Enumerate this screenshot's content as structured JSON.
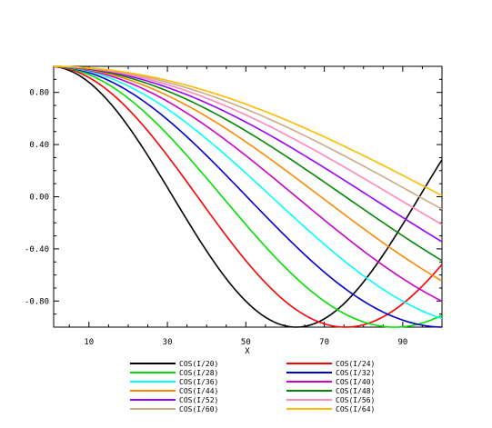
{
  "chart_data": {
    "type": "line",
    "title": "",
    "xlabel": "X",
    "ylabel": "",
    "xlim": [
      1,
      100
    ],
    "ylim": [
      -1.0,
      1.0
    ],
    "x_ticks": [
      10,
      30,
      50,
      70,
      90
    ],
    "x_tick_labels": [
      "10",
      "30",
      "50",
      "70",
      "90"
    ],
    "y_ticks": [
      0.8,
      0.4,
      0.0,
      -0.4,
      -0.8
    ],
    "y_tick_labels": [
      "0.80",
      "0.40",
      "0.00",
      "-0.40",
      "-0.80"
    ],
    "x": {
      "start": 1,
      "end": 100,
      "step": 1
    },
    "grid": false,
    "legend_position": "bottom",
    "series": [
      {
        "name": "COS(I/20)",
        "divisor": 20,
        "color": "#000000"
      },
      {
        "name": "COS(I/24)",
        "divisor": 24,
        "color": "#ff0000"
      },
      {
        "name": "COS(I/28)",
        "divisor": 28,
        "color": "#00e000"
      },
      {
        "name": "COS(I/32)",
        "divisor": 32,
        "color": "#0000cc"
      },
      {
        "name": "COS(I/36)",
        "divisor": 36,
        "color": "#00ffff"
      },
      {
        "name": "COS(I/40)",
        "divisor": 40,
        "color": "#cc00cc"
      },
      {
        "name": "COS(I/44)",
        "divisor": 44,
        "color": "#ff8800"
      },
      {
        "name": "COS(I/48)",
        "divisor": 48,
        "color": "#008800"
      },
      {
        "name": "COS(I/52)",
        "divisor": 52,
        "color": "#9900ff"
      },
      {
        "name": "COS(I/56)",
        "divisor": 56,
        "color": "#ff88bb"
      },
      {
        "name": "COS(I/60)",
        "divisor": 60,
        "color": "#ccaa88"
      },
      {
        "name": "COS(I/64)",
        "divisor": 64,
        "color": "#ffbb00"
      }
    ]
  }
}
